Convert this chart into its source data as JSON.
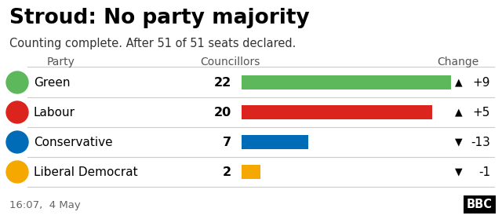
{
  "title": "Stroud: No party majority",
  "subtitle": "Counting complete. After 51 of 51 seats declared.",
  "footer": "16:07,  4 May",
  "col_party": "Party",
  "col_councillors": "Councillors",
  "col_change": "Change",
  "parties": [
    "Green",
    "Labour",
    "Conservative",
    "Liberal Democrat"
  ],
  "councillors": [
    22,
    20,
    7,
    2
  ],
  "changes": [
    "+9",
    "+5",
    "-13",
    "-1"
  ],
  "change_up": [
    true,
    true,
    false,
    false
  ],
  "bar_colors": [
    "#5cb85b",
    "#dc241f",
    "#006cb7",
    "#f5a800"
  ],
  "icon_colors": [
    "#5cb85b",
    "#dc241f",
    "#006cb7",
    "#f5a800"
  ],
  "max_bar_value": 22,
  "bg_color": "#ffffff",
  "separator_color": "#cccccc",
  "title_color": "#000000",
  "subtitle_color": "#333333",
  "footer_color": "#666666",
  "header_color": "#555555"
}
